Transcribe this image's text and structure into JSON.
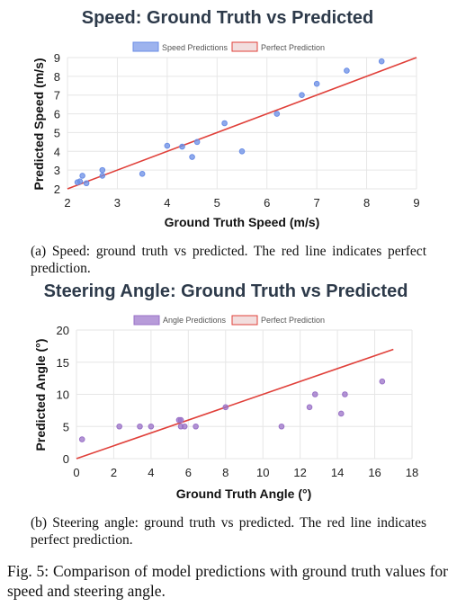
{
  "chart_data": [
    {
      "type": "scatter",
      "title": "Speed: Ground Truth vs Predicted",
      "xlabel": "Ground Truth Speed (m/s)",
      "ylabel": "Predicted Speed (m/s)",
      "xlim": [
        2,
        9
      ],
      "ylim": [
        2,
        9
      ],
      "xticks": [
        "2",
        "3",
        "4",
        "5",
        "6",
        "7",
        "8",
        "9"
      ],
      "yticks": [
        "2",
        "3",
        "4",
        "5",
        "6",
        "7",
        "8",
        "9"
      ],
      "grid": true,
      "legend_position": "top-center",
      "series": [
        {
          "name": "Speed Predictions",
          "type": "scatter",
          "color": "#6a8de6",
          "points": [
            [
              2.2,
              2.35
            ],
            [
              2.25,
              2.4
            ],
            [
              2.3,
              2.7
            ],
            [
              2.38,
              2.3
            ],
            [
              2.7,
              2.7
            ],
            [
              2.7,
              3.0
            ],
            [
              3.5,
              2.8
            ],
            [
              4.0,
              4.3
            ],
            [
              4.3,
              4.25
            ],
            [
              4.5,
              3.7
            ],
            [
              4.6,
              4.5
            ],
            [
              5.15,
              5.5
            ],
            [
              5.5,
              4.0
            ],
            [
              6.2,
              6.0
            ],
            [
              6.7,
              7.0
            ],
            [
              7.0,
              7.6
            ],
            [
              7.6,
              8.3
            ],
            [
              8.3,
              8.8
            ]
          ]
        },
        {
          "name": "Perfect Prediction",
          "type": "line",
          "color": "#e0403a",
          "points": [
            [
              2,
              2
            ],
            [
              9,
              9
            ]
          ]
        }
      ]
    },
    {
      "type": "scatter",
      "title": "Steering Angle: Ground Truth vs Predicted",
      "xlabel": "Ground Truth Angle (°)",
      "ylabel": "Predicted Angle (°)",
      "xlim": [
        0,
        18
      ],
      "ylim": [
        0,
        20
      ],
      "xticks": [
        "0",
        "2",
        "4",
        "6",
        "8",
        "10",
        "12",
        "14",
        "16",
        "18"
      ],
      "yticks": [
        "0",
        "5",
        "10",
        "15",
        "20"
      ],
      "grid": true,
      "legend_position": "top-center",
      "series": [
        {
          "name": "Angle Predictions",
          "type": "scatter",
          "color": "#9a72c7",
          "points": [
            [
              0.3,
              3
            ],
            [
              2.3,
              5
            ],
            [
              3.4,
              5
            ],
            [
              4.0,
              5
            ],
            [
              5.5,
              6
            ],
            [
              5.6,
              6
            ],
            [
              5.6,
              5
            ],
            [
              5.8,
              5
            ],
            [
              6.4,
              5
            ],
            [
              8.0,
              8
            ],
            [
              11.0,
              5
            ],
            [
              12.5,
              8
            ],
            [
              12.8,
              10
            ],
            [
              14.2,
              7
            ],
            [
              14.4,
              10
            ],
            [
              16.4,
              12
            ]
          ]
        },
        {
          "name": "Perfect Prediction",
          "type": "line",
          "color": "#e0403a",
          "points": [
            [
              0,
              0
            ],
            [
              17,
              17
            ]
          ]
        }
      ]
    }
  ],
  "captions": {
    "a": "(a) Speed: ground truth vs predicted. The red line indicates perfect prediction.",
    "b": "(b) Steering angle: ground truth vs predicted. The red line indicates perfect prediction.",
    "figure": "Fig. 5: Comparison of model predictions with ground truth values for speed and steering angle."
  }
}
